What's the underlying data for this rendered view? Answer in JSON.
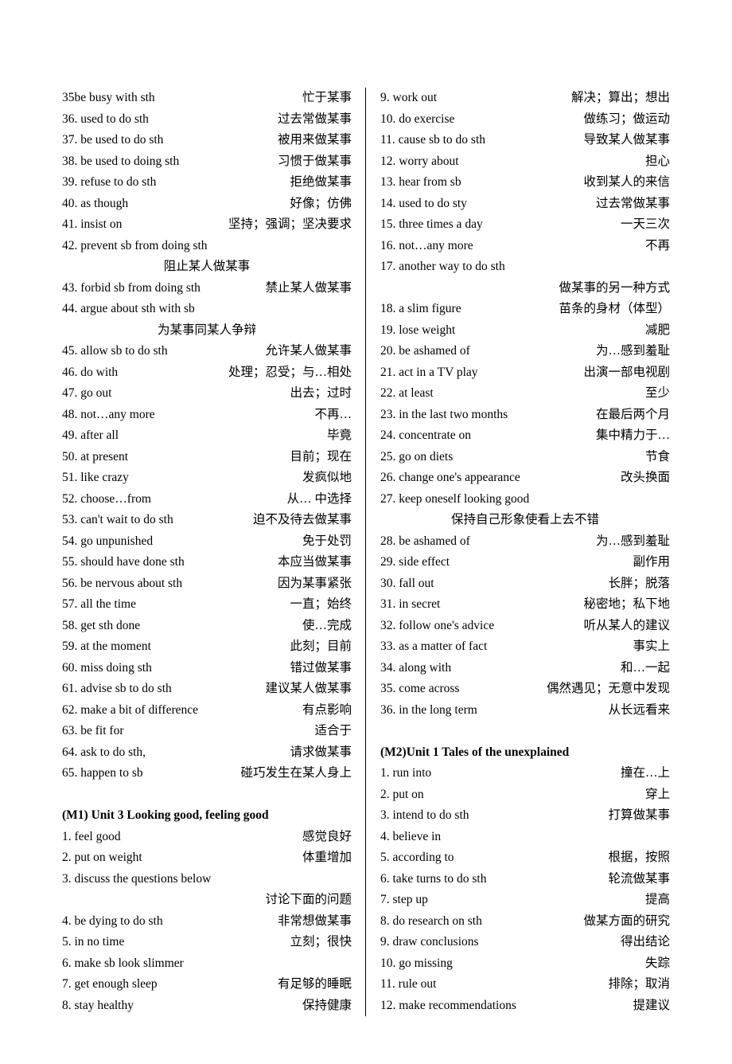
{
  "left_col": [
    {
      "type": "entry",
      "l": "35be busy with sth",
      "r": "忙于某事"
    },
    {
      "type": "entry",
      "l": "36. used to do sth",
      "r": "过去常做某事"
    },
    {
      "type": "entry",
      "l": "37. be used to do sth",
      "r": "被用来做某事"
    },
    {
      "type": "entry",
      "l": "38. be used to doing sth",
      "r": "习惯于做某事"
    },
    {
      "type": "entry",
      "l": "39. refuse to do sth",
      "r": "拒绝做某事"
    },
    {
      "type": "entry",
      "l": "40. as though",
      "r": "好像；仿佛"
    },
    {
      "type": "entry",
      "l": "41. insist on",
      "r": "坚持；强调；坚决要求"
    },
    {
      "type": "entry",
      "l": "42. prevent sb from doing sth",
      "r": ""
    },
    {
      "type": "entry",
      "mode": "c",
      "l": "",
      "r": "阻止某人做某事"
    },
    {
      "type": "entry",
      "l": "43. forbid sb from doing sth",
      "r": "禁止某人做某事"
    },
    {
      "type": "entry",
      "l": "44. argue about sth with sb",
      "r": ""
    },
    {
      "type": "entry",
      "mode": "c",
      "l": "",
      "r": "为某事同某人争辩"
    },
    {
      "type": "entry",
      "l": "45. allow sb to do sth",
      "r": "允许某人做某事"
    },
    {
      "type": "entry",
      "l": "46. do with",
      "r": "处理；忍受；与…相处"
    },
    {
      "type": "entry",
      "l": "47. go out",
      "r": "出去；过时"
    },
    {
      "type": "entry",
      "l": "48. not…any more",
      "r": "不再…"
    },
    {
      "type": "entry",
      "l": "49. after all",
      "r": "毕竟"
    },
    {
      "type": "entry",
      "l": "50. at present",
      "r": "目前；现在"
    },
    {
      "type": "entry",
      "l": "51. like crazy",
      "r": "发疯似地"
    },
    {
      "type": "entry",
      "l": "52. choose…from",
      "r": "从… 中选择"
    },
    {
      "type": "entry",
      "l": "53. can't wait to do sth",
      "r": "迫不及待去做某事"
    },
    {
      "type": "entry",
      "l": "54. go unpunished",
      "r": "免于处罚"
    },
    {
      "type": "entry",
      "l": "55. should have done sth",
      "r": "本应当做某事"
    },
    {
      "type": "entry",
      "l": "56. be nervous about sth",
      "r": "因为某事紧张"
    },
    {
      "type": "entry",
      "l": "57. all the time",
      "r": "一直；始终"
    },
    {
      "type": "entry",
      "l": "58. get sth done",
      "r": "使…完成"
    },
    {
      "type": "entry",
      "l": "59. at the moment",
      "r": "此刻；目前"
    },
    {
      "type": "entry",
      "l": "60. miss doing sth",
      "r": "错过做某事"
    },
    {
      "type": "entry",
      "l": "61. advise sb to do sth",
      "r": "建议某人做某事"
    },
    {
      "type": "entry",
      "l": "62. make a bit of difference",
      "r": "有点影响"
    },
    {
      "type": "entry",
      "l": "63. be fit for",
      "r": "适合于"
    },
    {
      "type": "entry",
      "l": "64. ask to do sth,",
      "r": "请求做某事"
    },
    {
      "type": "entry",
      "l": "65. happen to sb",
      "r": "碰巧发生在某人身上"
    },
    {
      "type": "blank"
    },
    {
      "type": "section",
      "text": "(M1) Unit 3    Looking good, feeling good"
    },
    {
      "type": "entry",
      "l": "1. feel good",
      "r": "感觉良好"
    },
    {
      "type": "entry",
      "l": "2. put on weight",
      "r": "体重增加"
    },
    {
      "type": "entry",
      "l": "3. discuss the questions below",
      "r": ""
    },
    {
      "type": "entry",
      "mode": "r",
      "l": "",
      "r": "讨论下面的问题"
    },
    {
      "type": "entry",
      "l": "4. be dying to do sth",
      "r": "非常想做某事"
    },
    {
      "type": "entry",
      "l": "5. in no time",
      "r": "立刻；很快"
    },
    {
      "type": "entry",
      "l": "6. make sb look slimmer",
      "r": ""
    },
    {
      "type": "entry",
      "l": "7. get enough sleep",
      "r": "有足够的睡眠"
    },
    {
      "type": "entry",
      "l": "8. stay healthy",
      "r": "保持健康"
    }
  ],
  "right_col": [
    {
      "type": "entry",
      "l": "9. work out",
      "r": "解决；算出；想出"
    },
    {
      "type": "entry",
      "l": "10. do exercise",
      "r": "做练习；做运动"
    },
    {
      "type": "entry",
      "l": "11. cause sb to do sth",
      "r": "导致某人做某事"
    },
    {
      "type": "entry",
      "l": "12. worry about",
      "r": "担心"
    },
    {
      "type": "entry",
      "l": "13. hear from sb",
      "r": "收到某人的来信"
    },
    {
      "type": "entry",
      "l": "14. used to do sty",
      "r": "过去常做某事"
    },
    {
      "type": "entry",
      "l": "15. three times a day",
      "r": "一天三次"
    },
    {
      "type": "entry",
      "l": "16. not…any more",
      "r": "不再"
    },
    {
      "type": "entry",
      "l": "17. another way to do sth",
      "r": ""
    },
    {
      "type": "entry",
      "mode": "r",
      "l": "",
      "r": "做某事的另一种方式"
    },
    {
      "type": "entry",
      "l": "18. a slim figure",
      "r": "苗条的身材（体型）"
    },
    {
      "type": "entry",
      "l": "19. lose weight",
      "r": "减肥"
    },
    {
      "type": "entry",
      "l": "20. be ashamed of",
      "r": "为…感到羞耻"
    },
    {
      "type": "entry",
      "l": "21. act in a TV play",
      "r": "出演一部电视剧"
    },
    {
      "type": "entry",
      "l": "22. at least",
      "r": "至少"
    },
    {
      "type": "entry",
      "l": "23. in the last two months",
      "r": "在最后两个月"
    },
    {
      "type": "entry",
      "l": "24. concentrate on",
      "r": "集中精力于…"
    },
    {
      "type": "entry",
      "l": "25. go on diets",
      "r": "节食"
    },
    {
      "type": "entry",
      "l": "26. change one's appearance",
      "r": "改头换面"
    },
    {
      "type": "entry",
      "l": "27. keep oneself looking good",
      "r": ""
    },
    {
      "type": "entry",
      "mode": "c",
      "l": "",
      "r": "保持自己形象使看上去不错"
    },
    {
      "type": "entry",
      "l": "28. be ashamed of",
      "r": "为…感到羞耻"
    },
    {
      "type": "entry",
      "l": "29. side effect",
      "r": "副作用"
    },
    {
      "type": "entry",
      "l": "30. fall out",
      "r": "长胖；脱落"
    },
    {
      "type": "entry",
      "l": "31. in secret",
      "r": "秘密地；私下地"
    },
    {
      "type": "entry",
      "l": "32. follow one's advice",
      "r": "听从某人的建议"
    },
    {
      "type": "entry",
      "l": "33. as a matter of fact",
      "r": "事实上"
    },
    {
      "type": "entry",
      "l": "34. along with",
      "r": "和…一起"
    },
    {
      "type": "entry",
      "l": "35. come across",
      "r": "偶然遇见；无意中发现"
    },
    {
      "type": "entry",
      "l": "36. in the long term",
      "r": "从长远看来"
    },
    {
      "type": "blank"
    },
    {
      "type": "section",
      "text": "(M2)Unit 1    Tales of the unexplained"
    },
    {
      "type": "entry",
      "l": "1. run into",
      "r": "撞在…上"
    },
    {
      "type": "entry",
      "l": "2. put on",
      "r": "穿上"
    },
    {
      "type": "entry",
      "l": "3. intend to do sth",
      "r": "打算做某事"
    },
    {
      "type": "entry",
      "l": "4. believe in",
      "r": ""
    },
    {
      "type": "entry",
      "l": "5. according to",
      "r": "根据，按照"
    },
    {
      "type": "entry",
      "l": "6. take turns to do sth",
      "r": "轮流做某事"
    },
    {
      "type": "entry",
      "l": "7. step up",
      "r": "提高"
    },
    {
      "type": "entry",
      "l": "8. do research on sth",
      "r": "做某方面的研究"
    },
    {
      "type": "entry",
      "l": "9. draw conclusions",
      "r": "得出结论"
    },
    {
      "type": "entry",
      "l": "10. go missing",
      "r": "失踪"
    },
    {
      "type": "entry",
      "l": "11. rule out",
      "r": "排除；取消"
    },
    {
      "type": "entry",
      "l": "12. make recommendations",
      "r": "提建议"
    }
  ]
}
